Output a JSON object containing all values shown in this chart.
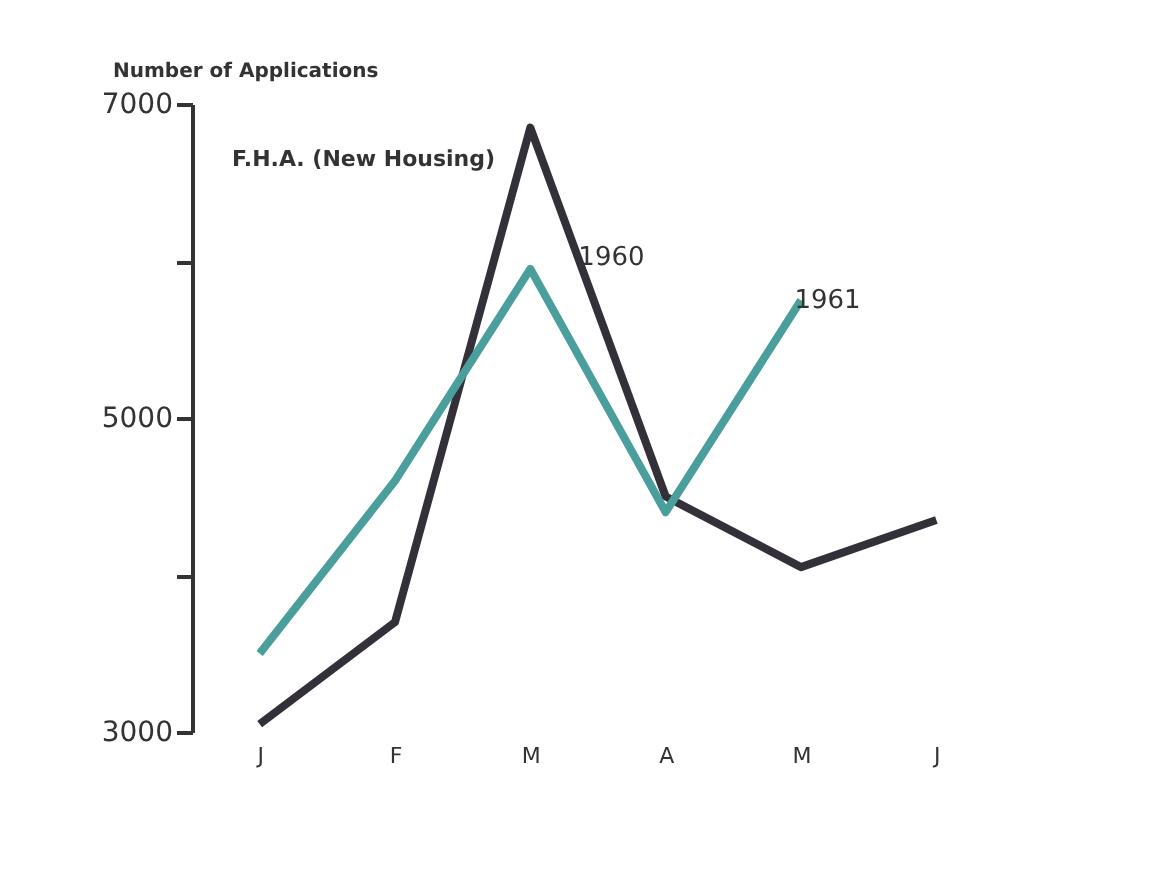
{
  "chart_data": {
    "type": "line",
    "ylabel": "Number of Applications",
    "annotations": [
      "F.H.A. (New Housing)"
    ],
    "categories": [
      "J",
      "F",
      "M",
      "A",
      "M",
      "J"
    ],
    "series": [
      {
        "name": "1960",
        "color": "#34303a",
        "values": [
          3050,
          3700,
          6850,
          4500,
          4050,
          4350
        ]
      },
      {
        "name": "1961",
        "color": "#4a9e9c",
        "values": [
          3500,
          4600,
          5950,
          4400,
          5750,
          null
        ]
      }
    ],
    "ylim": [
      3000,
      7000
    ],
    "yticks": [
      3000,
      {
        "value": 4000,
        "label": null
      },
      5000,
      {
        "value": 6000,
        "label": null
      },
      7000
    ],
    "grid": false,
    "legend": false,
    "marker": "none",
    "line_style": "solid"
  }
}
